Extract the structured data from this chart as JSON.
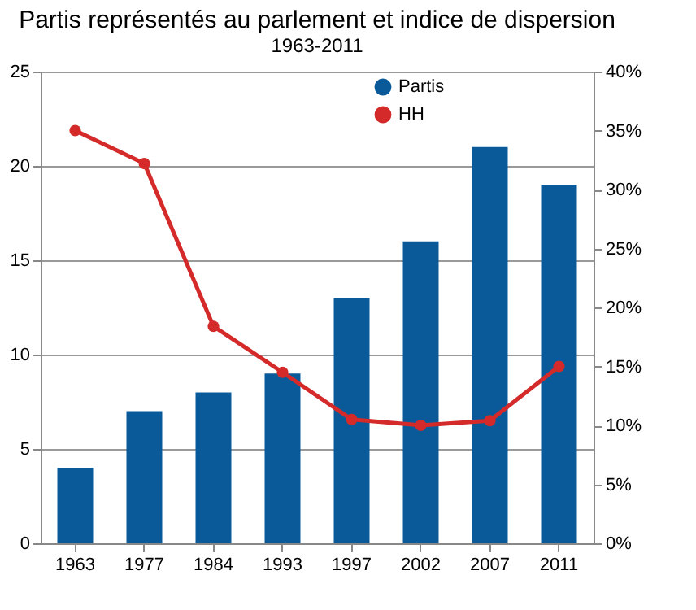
{
  "chart_data": {
    "type": "bar",
    "title": "Partis représentés au parlement et indice de dispersion",
    "subtitle": "1963-2011",
    "categories": [
      "1963",
      "1977",
      "1984",
      "1993",
      "1997",
      "2002",
      "2007",
      "2011"
    ],
    "series": [
      {
        "name": "Partis",
        "color": "#0a5a9a",
        "values": [
          4,
          7,
          8,
          9,
          13,
          16,
          21,
          19
        ]
      },
      {
        "name": "HH",
        "type": "line",
        "axis": "y2",
        "color": "#d42a2a",
        "marker": "circle",
        "values": [
          35,
          32.2,
          18.4,
          14.5,
          10.5,
          10,
          10.4,
          15
        ]
      }
    ],
    "ylim": [
      0,
      25
    ],
    "yticks": [
      0,
      5,
      10,
      15,
      20,
      25
    ],
    "y2lim": [
      0,
      40
    ],
    "y2ticks": [
      {
        "value": 0,
        "label": "0%"
      },
      {
        "value": 5,
        "label": "5%"
      },
      {
        "value": 10,
        "label": "10%"
      },
      {
        "value": 15,
        "label": "15%"
      },
      {
        "value": 20,
        "label": "20%"
      },
      {
        "value": 25,
        "label": "25%"
      },
      {
        "value": 30,
        "label": "30%"
      },
      {
        "value": 35,
        "label": "35%"
      },
      {
        "value": 40,
        "label": "40%"
      }
    ],
    "grid": "y",
    "legend": "top right"
  }
}
